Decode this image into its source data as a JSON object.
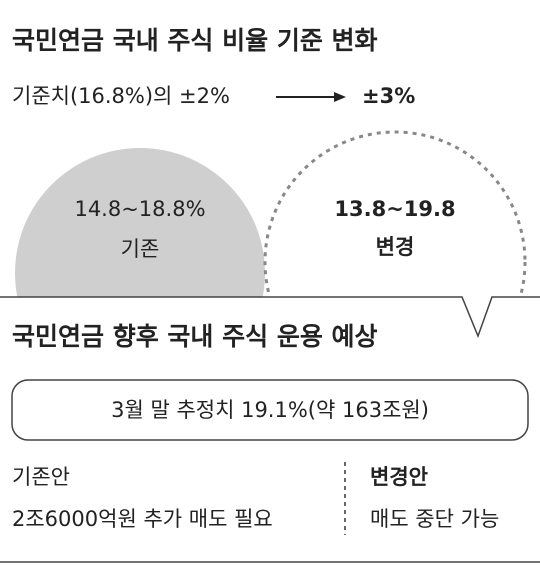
{
  "header": {
    "title": "국민연금 국내 주식 비율 기준 변화",
    "change_from": "기준치(16.8%)의 ±2%",
    "change_to": "±3%"
  },
  "circles": {
    "before": {
      "range": "14.8~18.8%",
      "label": "기존"
    },
    "after": {
      "range": "13.8~19.8",
      "label": "변경"
    }
  },
  "outlook": {
    "title": "국민연금 향후 국내 주식 운용 예상",
    "estimate": "3월 말 추정치 19.1%(약 163조원)",
    "before": {
      "title": "기존안",
      "text": "2조6000억원 추가 매도 필요"
    },
    "after": {
      "title": "변경안",
      "text": "매도 중단 가능"
    }
  }
}
